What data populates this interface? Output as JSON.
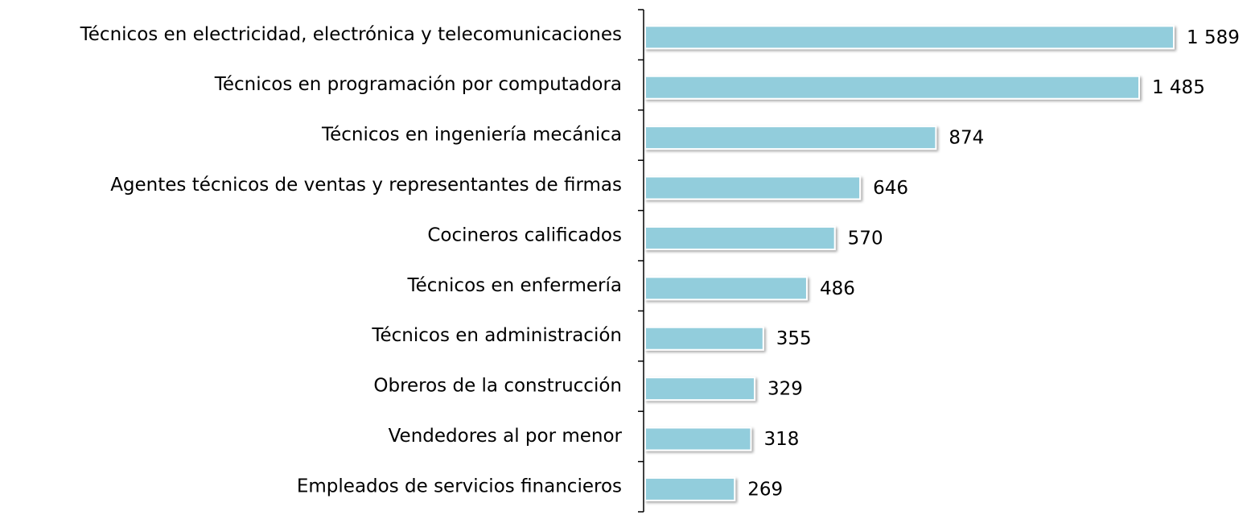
{
  "chart_data": {
    "type": "barh",
    "categories": [
      "Técnicos en electricidad, electrónica y telecomunicaciones",
      "Técnicos en programación por computadora",
      "Técnicos en ingeniería mecánica",
      "Agentes técnicos de ventas y representantes de firmas",
      "Cocineros calificados",
      "Técnicos en enfermería",
      "Técnicos en administración",
      "Obreros de la construcción",
      "Vendedores al por menor",
      "Empleados de servicios financieros"
    ],
    "values": [
      1589,
      1485,
      874,
      646,
      570,
      486,
      355,
      329,
      318,
      269
    ],
    "value_labels": [
      "1 589",
      "1 485",
      "874",
      "646",
      "570",
      "486",
      "355",
      "329",
      "318",
      "269"
    ],
    "color": "#92cddc"
  }
}
